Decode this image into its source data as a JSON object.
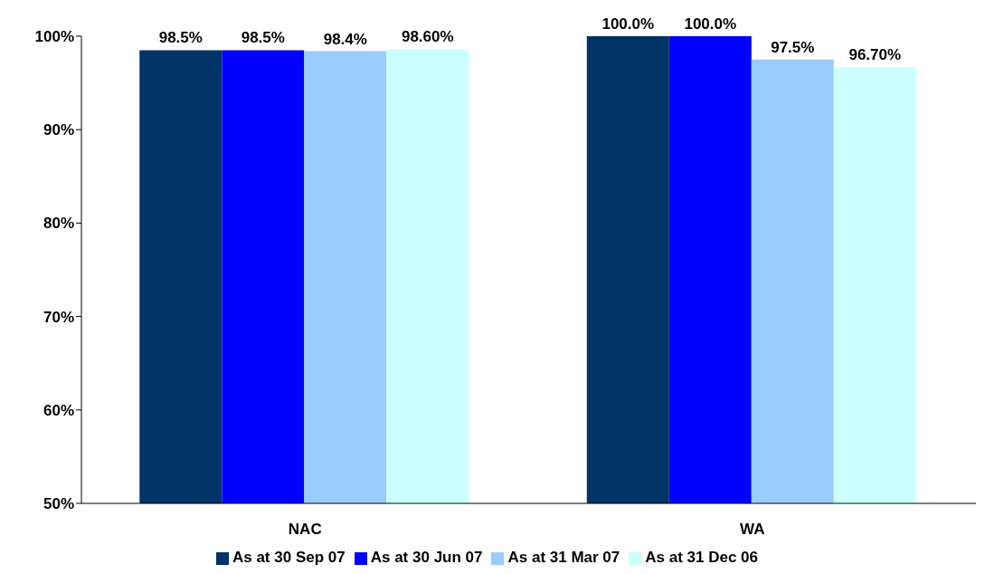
{
  "chart_data": {
    "type": "bar",
    "categories": [
      "NAC",
      "WA"
    ],
    "series": [
      {
        "name": "As at 30 Sep 07",
        "color": "#003366",
        "values": [
          98.5,
          100.0
        ],
        "value_labels": [
          "98.5%",
          "100.0%"
        ]
      },
      {
        "name": "As at 30 Jun 07",
        "color": "#0000ff",
        "values": [
          98.5,
          100.0
        ],
        "value_labels": [
          "98.5%",
          "100.0%"
        ]
      },
      {
        "name": "As at 31 Mar 07",
        "color": "#99ccff",
        "values": [
          98.4,
          97.5
        ],
        "value_labels": [
          "98.4%",
          "97.5%"
        ]
      },
      {
        "name": "As at 31 Dec 06",
        "color": "#ccffff",
        "values": [
          98.6,
          96.7
        ],
        "value_labels": [
          "98.60%",
          "96.70%"
        ]
      }
    ],
    "ylim": [
      50,
      100
    ],
    "yticks": [
      {
        "value": 50,
        "label": "50%"
      },
      {
        "value": 60,
        "label": "60%"
      },
      {
        "value": 70,
        "label": "70%"
      },
      {
        "value": 80,
        "label": "80%"
      },
      {
        "value": 90,
        "label": "90%"
      },
      {
        "value": 100,
        "label": "100%"
      }
    ],
    "grid": false,
    "legend": "bottom"
  }
}
